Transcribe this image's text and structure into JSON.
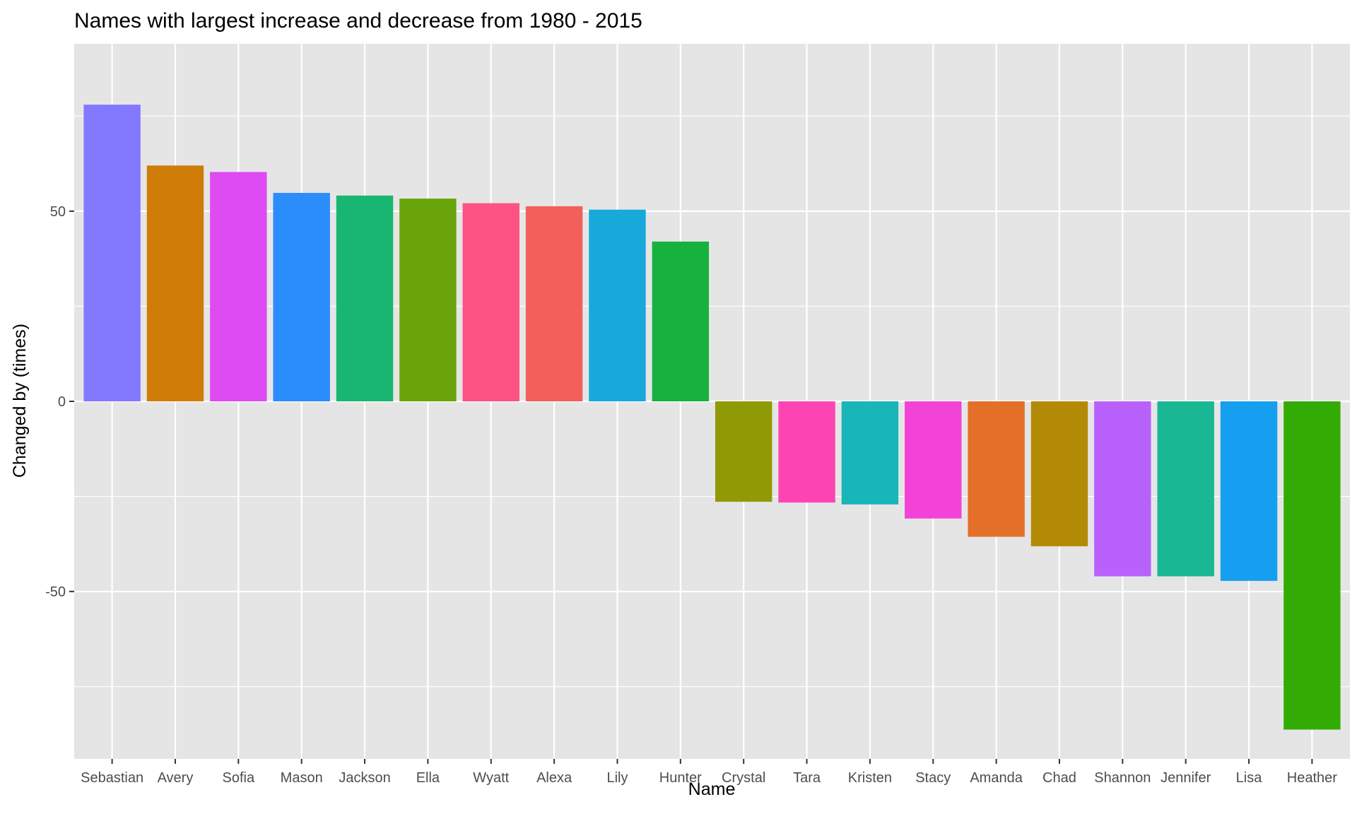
{
  "chart_data": {
    "type": "bar",
    "title": "Names with largest increase and decrease from 1980 - 2015",
    "xlabel": "Name",
    "ylabel": "Changed by (times)",
    "categories": [
      "Sebastian",
      "Avery",
      "Sofia",
      "Mason",
      "Jackson",
      "Ella",
      "Wyatt",
      "Alexa",
      "Lily",
      "Hunter",
      "Crystal",
      "Tara",
      "Kristen",
      "Stacy",
      "Amanda",
      "Chad",
      "Shannon",
      "Jennifer",
      "Lisa",
      "Heather"
    ],
    "values": [
      78.0,
      62.0,
      60.3,
      54.8,
      54.1,
      53.3,
      52.1,
      51.3,
      50.4,
      42.0,
      -26.4,
      -26.6,
      -27.1,
      -30.8,
      -35.6,
      -38.1,
      -46.0,
      -46.0,
      -47.2,
      -86.3
    ],
    "colors": [
      "#8379FF",
      "#CF7C08",
      "#DE4BF3",
      "#2B8CFC",
      "#18B670",
      "#69A40A",
      "#FD5384",
      "#F3605C",
      "#17A9D9",
      "#17B13E",
      "#909A04",
      "#FD44B3",
      "#18B5B9",
      "#F242D8",
      "#E46F28",
      "#B38A05",
      "#B861FC",
      "#19B794",
      "#169EF0",
      "#32AC04"
    ],
    "ylim": [
      -94,
      94
    ],
    "yticks": [
      -50,
      0,
      50
    ],
    "ytick_labels": [
      "-50",
      "0",
      "50"
    ],
    "grid": true,
    "legend": "none",
    "panel_background": "#E5E5E5",
    "grid_color": "#FFFFFF"
  }
}
